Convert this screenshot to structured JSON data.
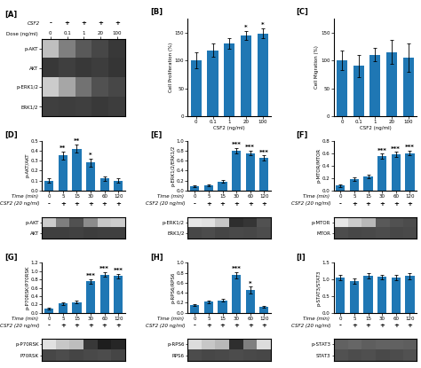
{
  "chart_data": [
    {
      "type": "heatmap",
      "title": "[A]",
      "csf2_label": "CSF2",
      "csf2_row": [
        "-",
        "+",
        "+",
        "+",
        "+"
      ],
      "xlabel": "Dose (ng/ml)",
      "categories": [
        "0",
        "0.1",
        "1",
        "20",
        "100"
      ],
      "rows": [
        "p-AKT",
        "AKT",
        "p-ERK1/2",
        "ERK1/2"
      ],
      "cells": [
        [
          0.25,
          0.5,
          0.65,
          0.72,
          0.78
        ],
        [
          0.78,
          0.75,
          0.78,
          0.76,
          0.79
        ],
        [
          0.2,
          0.35,
          0.55,
          0.68,
          0.72
        ],
        [
          0.75,
          0.76,
          0.75,
          0.77,
          0.76
        ]
      ],
      "zlim": [
        0,
        1
      ]
    },
    {
      "type": "bar",
      "title": "[B]",
      "categories": [
        "0",
        "0.1",
        "1",
        "20",
        "100"
      ],
      "values": [
        100,
        118,
        130,
        145,
        148
      ],
      "errors": [
        15,
        12,
        10,
        8,
        9
      ],
      "annotations": [
        null,
        null,
        null,
        "*",
        "*"
      ],
      "ylabel": "Cell Proliferation (%)",
      "xlabel": "CSF2 (ng/ml)",
      "ylim": [
        0,
        175
      ],
      "yticks": [
        0,
        50,
        100,
        150
      ]
    },
    {
      "type": "bar",
      "title": "[C]",
      "categories": [
        "0",
        "0.1",
        "1",
        "20",
        "100"
      ],
      "values": [
        100,
        90,
        110,
        115,
        105
      ],
      "errors": [
        18,
        20,
        12,
        22,
        25
      ],
      "ylabel": "Cell Migration (%)",
      "xlabel": "CSF2 (ng/ml)",
      "ylim": [
        0,
        175
      ],
      "yticks": [
        0,
        50,
        100,
        150
      ]
    },
    {
      "type": "bar",
      "title": "[D]",
      "categories": [
        "0",
        "5",
        "15",
        "30",
        "60",
        "120"
      ],
      "values": [
        0.1,
        0.35,
        0.42,
        0.28,
        0.12,
        0.1
      ],
      "errors": [
        0.02,
        0.04,
        0.04,
        0.04,
        0.02,
        0.02
      ],
      "annotations": [
        null,
        "**",
        "**",
        "*",
        null,
        null
      ],
      "ylabel": "p-AKT/AKT",
      "xlabel": "Time (min)",
      "ylim": [
        0,
        0.5
      ],
      "yticks": [
        0.0,
        0.1,
        0.2,
        0.3,
        0.4,
        0.5
      ],
      "csf2_label": "CSF2 (20 ng/ml)",
      "csf2_row": [
        "-",
        "+",
        "+",
        "+",
        "+",
        "+"
      ],
      "blot": {
        "type": "heatmap",
        "rows": [
          "p-AKT",
          "AKT"
        ],
        "cells": [
          [
            0.2,
            0.5,
            0.68,
            0.45,
            0.22,
            0.2
          ],
          [
            0.75,
            0.75,
            0.74,
            0.76,
            0.75,
            0.75
          ]
        ],
        "zlim": [
          0,
          1
        ]
      }
    },
    {
      "type": "bar",
      "title": "[E]",
      "categories": [
        "0",
        "5",
        "15",
        "30",
        "60",
        "120"
      ],
      "values": [
        0.08,
        0.1,
        0.18,
        0.8,
        0.75,
        0.65
      ],
      "errors": [
        0.02,
        0.02,
        0.03,
        0.05,
        0.05,
        0.05
      ],
      "annotations": [
        null,
        null,
        null,
        "***",
        "***",
        "***"
      ],
      "ylabel": "p-ERK1/2/ERK1/2",
      "xlabel": "Time (min)",
      "ylim": [
        0,
        1.0
      ],
      "yticks": [
        0.0,
        0.2,
        0.4,
        0.6,
        0.8,
        1.0
      ],
      "csf2_label": "CSF2 (20 ng/ml)",
      "csf2_row": [
        "-",
        "+",
        "+",
        "+",
        "+",
        "+"
      ],
      "blot": {
        "type": "heatmap",
        "rows": [
          "p-ERK1/2",
          "ERK1/2"
        ],
        "cells": [
          [
            0.1,
            0.12,
            0.22,
            0.82,
            0.79,
            0.68
          ],
          [
            0.72,
            0.7,
            0.73,
            0.71,
            0.72,
            0.7
          ]
        ],
        "zlim": [
          0,
          1
        ]
      }
    },
    {
      "type": "bar",
      "title": "[F]",
      "categories": [
        "0",
        "5",
        "15",
        "30",
        "60",
        "120"
      ],
      "values": [
        0.08,
        0.18,
        0.22,
        0.55,
        0.58,
        0.6
      ],
      "errors": [
        0.02,
        0.03,
        0.03,
        0.04,
        0.04,
        0.04
      ],
      "annotations": [
        null,
        null,
        null,
        "***",
        "***",
        "***"
      ],
      "ylabel": "p-MTOR/MTOR",
      "xlabel": "Time (min)",
      "ylim": [
        0,
        0.8
      ],
      "yticks": [
        0.0,
        0.2,
        0.4,
        0.6,
        0.8
      ],
      "csf2_label": "CSF2 (20 ng/ml)",
      "csf2_row": [
        "-",
        "+",
        "+",
        "+",
        "+",
        "+"
      ],
      "blot": {
        "type": "heatmap",
        "rows": [
          "p-MTOR",
          "MTOR"
        ],
        "cells": [
          [
            0.1,
            0.2,
            0.28,
            0.65,
            0.68,
            0.7
          ],
          [
            0.7,
            0.72,
            0.71,
            0.7,
            0.72,
            0.71
          ]
        ],
        "zlim": [
          0,
          1
        ]
      }
    },
    {
      "type": "bar",
      "title": "[G]",
      "categories": [
        "0",
        "5",
        "15",
        "30",
        "60",
        "120"
      ],
      "values": [
        0.1,
        0.22,
        0.25,
        0.75,
        0.92,
        0.88
      ],
      "errors": [
        0.02,
        0.03,
        0.03,
        0.05,
        0.05,
        0.05
      ],
      "annotations": [
        null,
        null,
        null,
        "***",
        "***",
        "***"
      ],
      "ylabel": "p-P70RSK/P70RSK",
      "xlabel": "Time (min)",
      "ylim": [
        0,
        1.2
      ],
      "yticks": [
        0.0,
        0.2,
        0.4,
        0.6,
        0.8,
        1.0,
        1.2
      ],
      "csf2_label": "CSF2 (20 ng/ml)",
      "csf2_row": [
        "-",
        "+",
        "+",
        "+",
        "+",
        "+"
      ],
      "blot": {
        "type": "heatmap",
        "rows": [
          "p-P70RSK",
          "P70RSK"
        ],
        "cells": [
          [
            0.12,
            0.22,
            0.26,
            0.78,
            0.88,
            0.85
          ],
          [
            0.72,
            0.7,
            0.73,
            0.71,
            0.7,
            0.73
          ]
        ],
        "zlim": [
          0,
          1
        ]
      }
    },
    {
      "type": "bar",
      "title": "[H]",
      "categories": [
        "0",
        "5",
        "15",
        "30",
        "60",
        "120"
      ],
      "values": [
        0.15,
        0.22,
        0.25,
        0.75,
        0.45,
        0.12
      ],
      "errors": [
        0.02,
        0.03,
        0.03,
        0.06,
        0.07,
        0.02
      ],
      "annotations": [
        null,
        null,
        null,
        "***",
        "*",
        null
      ],
      "ylabel": "p-RPS6/RPS6",
      "xlabel": "Time (min)",
      "ylim": [
        0,
        1.0
      ],
      "yticks": [
        0.0,
        0.2,
        0.4,
        0.6,
        0.8,
        1.0
      ],
      "csf2_label": "CSF2 (20 ng/ml)",
      "csf2_row": [
        "-",
        "+",
        "+",
        "+",
        "+",
        "+"
      ],
      "blot": {
        "type": "heatmap",
        "rows": [
          "p-RPS6",
          "RPS6"
        ],
        "cells": [
          [
            0.14,
            0.22,
            0.28,
            0.82,
            0.5,
            0.14
          ],
          [
            0.7,
            0.72,
            0.71,
            0.7,
            0.71,
            0.72
          ]
        ],
        "zlim": [
          0,
          1
        ]
      }
    },
    {
      "type": "bar",
      "title": "[I]",
      "categories": [
        "0",
        "5",
        "15",
        "30",
        "60",
        "120"
      ],
      "values": [
        1.05,
        0.95,
        1.1,
        1.08,
        1.05,
        1.1
      ],
      "errors": [
        0.08,
        0.07,
        0.08,
        0.07,
        0.08,
        0.09
      ],
      "ylabel": "p-STAT3/STAT3",
      "xlabel": "Time (min)",
      "ylim": [
        0,
        1.5
      ],
      "yticks": [
        0.0,
        0.5,
        1.0,
        1.5
      ],
      "csf2_label": "CSF2 (20 ng/ml)",
      "csf2_row": [
        "-",
        "+",
        "+",
        "+",
        "+",
        "+"
      ],
      "blot": {
        "type": "heatmap",
        "rows": [
          "p-STAT3",
          "STAT3"
        ],
        "cells": [
          [
            0.62,
            0.6,
            0.63,
            0.61,
            0.62,
            0.63
          ],
          [
            0.68,
            0.7,
            0.69,
            0.71,
            0.7,
            0.68
          ]
        ],
        "zlim": [
          0,
          1
        ]
      }
    }
  ]
}
